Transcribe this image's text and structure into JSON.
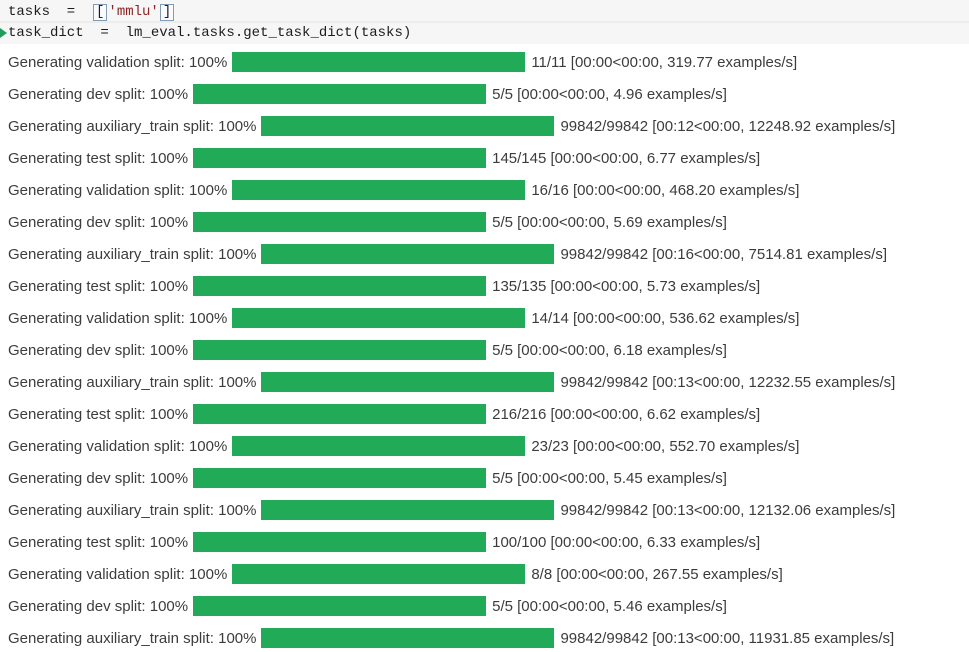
{
  "code": {
    "line1_prefix": "tasks  =  ",
    "line1_open_bracket": "[",
    "line1_string": "'mmlu'",
    "line1_close_bracket": "]",
    "line2": "task_dict  =  lm_eval.tasks.get_task_dict(tasks)"
  },
  "colors": {
    "progress_bar_fill": "#21ab58",
    "string_literal": "#8b2525",
    "code_background": "#f6f6f6",
    "text": "#3c3c3c"
  },
  "rows": [
    {
      "label": "Generating validation split: 100%",
      "percent": 100,
      "stats": "11/11 [00:00<00:00, 319.77 examples/s]"
    },
    {
      "label": "Generating dev split: 100%",
      "percent": 100,
      "stats": "5/5 [00:00<00:00, 4.96 examples/s]"
    },
    {
      "label": "Generating auxiliary_train split: 100%",
      "percent": 100,
      "stats": "99842/99842 [00:12<00:00, 12248.92 examples/s]"
    },
    {
      "label": "Generating test split: 100%",
      "percent": 100,
      "stats": "145/145 [00:00<00:00, 6.77 examples/s]"
    },
    {
      "label": "Generating validation split: 100%",
      "percent": 100,
      "stats": "16/16 [00:00<00:00, 468.20 examples/s]"
    },
    {
      "label": "Generating dev split: 100%",
      "percent": 100,
      "stats": "5/5 [00:00<00:00, 5.69 examples/s]"
    },
    {
      "label": "Generating auxiliary_train split: 100%",
      "percent": 100,
      "stats": "99842/99842 [00:16<00:00, 7514.81 examples/s]"
    },
    {
      "label": "Generating test split: 100%",
      "percent": 100,
      "stats": "135/135 [00:00<00:00, 5.73 examples/s]"
    },
    {
      "label": "Generating validation split: 100%",
      "percent": 100,
      "stats": "14/14 [00:00<00:00, 536.62 examples/s]"
    },
    {
      "label": "Generating dev split: 100%",
      "percent": 100,
      "stats": "5/5 [00:00<00:00, 6.18 examples/s]"
    },
    {
      "label": "Generating auxiliary_train split: 100%",
      "percent": 100,
      "stats": "99842/99842 [00:13<00:00, 12232.55 examples/s]"
    },
    {
      "label": "Generating test split: 100%",
      "percent": 100,
      "stats": "216/216 [00:00<00:00, 6.62 examples/s]"
    },
    {
      "label": "Generating validation split: 100%",
      "percent": 100,
      "stats": "23/23 [00:00<00:00, 552.70 examples/s]"
    },
    {
      "label": "Generating dev split: 100%",
      "percent": 100,
      "stats": "5/5 [00:00<00:00, 5.45 examples/s]"
    },
    {
      "label": "Generating auxiliary_train split: 100%",
      "percent": 100,
      "stats": "99842/99842 [00:13<00:00, 12132.06 examples/s]"
    },
    {
      "label": "Generating test split: 100%",
      "percent": 100,
      "stats": "100/100 [00:00<00:00, 6.33 examples/s]"
    },
    {
      "label": "Generating validation split: 100%",
      "percent": 100,
      "stats": "8/8 [00:00<00:00, 267.55 examples/s]"
    },
    {
      "label": "Generating dev split: 100%",
      "percent": 100,
      "stats": "5/5 [00:00<00:00, 5.46 examples/s]"
    },
    {
      "label": "Generating auxiliary_train split: 100%",
      "percent": 100,
      "stats": "99842/99842 [00:13<00:00, 11931.85 examples/s]"
    }
  ]
}
